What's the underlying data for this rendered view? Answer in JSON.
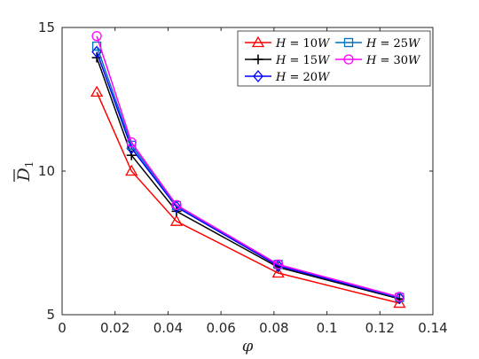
{
  "chart_data": {
    "type": "line",
    "title": "",
    "xlabel": "φ",
    "ylabel_base": "D",
    "ylabel_sub": "1",
    "xlim": [
      0,
      0.14
    ],
    "ylim": [
      5,
      15
    ],
    "xticks": [
      0,
      0.02,
      0.04,
      0.06,
      0.08,
      0.1,
      0.12,
      0.14
    ],
    "xtick_labels": [
      "0",
      "0.02",
      "0.04",
      "0.06",
      "0.08",
      "0.1",
      "0.12",
      "0.14"
    ],
    "yticks": [
      5,
      10,
      15
    ],
    "ytick_labels": [
      "5",
      "10",
      "15"
    ],
    "grid": false,
    "legend_position": "top-right",
    "x": [
      0.0131,
      0.0262,
      0.0432,
      0.0816,
      0.1274
    ],
    "series": [
      {
        "name": "H = 10W",
        "color": "#ff0000",
        "marker": "triangle",
        "values": [
          12.75,
          10.0,
          8.25,
          6.45,
          5.4
        ]
      },
      {
        "name": "H = 15W",
        "color": "#000000",
        "marker": "plus",
        "values": [
          13.95,
          10.55,
          8.6,
          6.65,
          5.55
        ]
      },
      {
        "name": "H = 20W",
        "color": "#0000ff",
        "marker": "diamond",
        "values": [
          14.15,
          10.8,
          8.75,
          6.7,
          5.58
        ]
      },
      {
        "name": "H = 25W",
        "color": "#0072bd",
        "marker": "square",
        "values": [
          14.35,
          10.9,
          8.8,
          6.75,
          5.6
        ]
      },
      {
        "name": "H = 30W",
        "color": "#ff00ff",
        "marker": "circle",
        "values": [
          14.7,
          11.0,
          8.82,
          6.75,
          5.62
        ]
      }
    ]
  }
}
